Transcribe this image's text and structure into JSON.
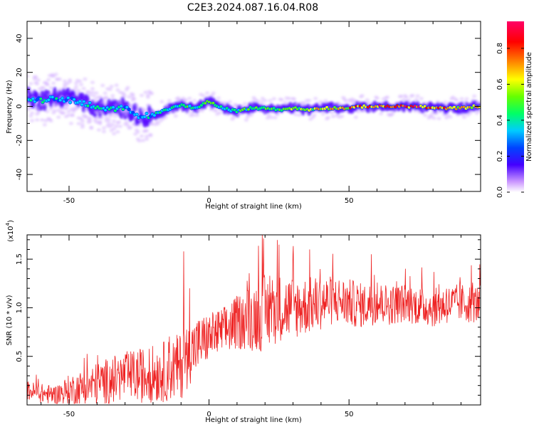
{
  "title": "C2E3.2024.087.16.04.R08",
  "colors": {
    "snr_line": "#ee2222",
    "frame": "#000000"
  },
  "chart_data": [
    {
      "type": "heatmap",
      "xlabel": "Height of straight line (km)",
      "ylabel": "Frequency (Hz)",
      "xlim": [
        -65,
        97
      ],
      "ylim": [
        -50,
        50
      ],
      "x_ticks": [
        -50,
        0,
        50
      ],
      "y_ticks": [
        -40,
        -20,
        0,
        20,
        40
      ],
      "x_tick_labels": [
        "-50",
        "0",
        "50"
      ],
      "y_tick_labels": [
        "-40",
        "-20",
        "0",
        "20",
        "40"
      ],
      "colorbar": {
        "label": "Normalized spectral amplitude",
        "range": [
          0,
          0.95
        ],
        "ticks": [
          0.0,
          0.2,
          0.4,
          0.6,
          0.8
        ],
        "tick_labels": [
          "0.0",
          "0.2",
          "0.4",
          "0.6",
          "0.8"
        ],
        "colors": [
          "#ffffff",
          "#cc99ff",
          "#4400ff",
          "#0044ff",
          "#00ccff",
          "#00ff66",
          "#66ff00",
          "#ffff00",
          "#ff8800",
          "#ff0000",
          "#ff0066"
        ]
      },
      "ridge": {
        "x": [
          -64,
          -60,
          -55,
          -50,
          -45,
          -40,
          -35,
          -30,
          -25,
          -20,
          -15,
          -10,
          -5,
          0,
          5,
          10,
          15,
          20,
          25,
          30,
          35,
          40,
          45,
          50,
          55,
          60,
          65,
          70,
          75,
          80,
          85,
          90,
          95
        ],
        "freq": [
          5,
          3,
          5,
          4,
          2,
          0,
          -2,
          -1,
          -6,
          -5,
          -2,
          1,
          -1,
          3,
          -1,
          -3,
          -1,
          -1,
          -2,
          -1,
          -2,
          -1,
          -1,
          -1,
          0,
          0,
          0,
          0,
          0,
          -1,
          -1,
          -1,
          0
        ],
        "amplitude": [
          0.4,
          0.42,
          0.4,
          0.42,
          0.4,
          0.45,
          0.45,
          0.4,
          0.35,
          0.42,
          0.45,
          0.5,
          0.5,
          0.55,
          0.45,
          0.5,
          0.5,
          0.6,
          0.55,
          0.6,
          0.6,
          0.7,
          0.7,
          0.75,
          0.8,
          0.85,
          0.95,
          0.95,
          0.85,
          0.8,
          0.75,
          0.7,
          0.7
        ]
      }
    },
    {
      "type": "line",
      "xlabel": "Height of straight line (km)",
      "ylabel": "SNR (10 * v/v)",
      "scale_label": "(x10",
      "scale_exp": "4",
      "xlim": [
        -65,
        97
      ],
      "ylim": [
        0,
        17500
      ],
      "x_ticks": [
        -50,
        0,
        50
      ],
      "y_ticks": [
        5000,
        10000,
        15000
      ],
      "x_tick_labels": [
        "-50",
        "0",
        "50"
      ],
      "y_tick_labels": [
        "0.5",
        "1.0",
        "1.5"
      ],
      "series": [
        {
          "x": [
            -65,
            -60,
            -55,
            -50,
            -45,
            -40,
            -35,
            -30,
            -25,
            -20,
            -15,
            -10,
            -5,
            0,
            5,
            10,
            15,
            20,
            25,
            30,
            35,
            40,
            45,
            50,
            55,
            60,
            65,
            70,
            75,
            80,
            85,
            90,
            95,
            97
          ],
          "y": [
            1500,
            1200,
            1000,
            1500,
            1800,
            2200,
            2500,
            3000,
            3000,
            3200,
            3500,
            4000,
            6000,
            7000,
            7500,
            8500,
            9000,
            9500,
            10000,
            10000,
            10200,
            10500,
            10800,
            10500,
            10200,
            10500,
            10300,
            10500,
            10200,
            10000,
            10300,
            10500,
            10400,
            10400
          ],
          "spread": [
            1000,
            1000,
            1000,
            1600,
            1800,
            2200,
            2500,
            2500,
            2800,
            3000,
            3200,
            3500,
            3000,
            2500,
            2600,
            2800,
            3500,
            4000,
            3500,
            3300,
            3000,
            2800,
            2500,
            2500,
            2300,
            2200,
            2100,
            2000,
            2000,
            2000,
            2000,
            2000,
            2000,
            2000
          ],
          "peaks": [
            [
              -9,
              15800
            ],
            [
              -7,
              12000
            ],
            [
              19,
              17500
            ],
            [
              25,
              16500
            ],
            [
              36,
              16000
            ],
            [
              58,
              15500
            ]
          ]
        }
      ]
    }
  ]
}
